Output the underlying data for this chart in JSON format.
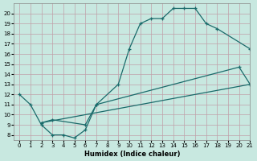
{
  "background_color": "#c8e8e0",
  "grid_color": "#c0a0a8",
  "line_color": "#1a6b6b",
  "xlabel": "Humidex (Indice chaleur)",
  "xlim": [
    -0.5,
    21
  ],
  "ylim": [
    7.5,
    21
  ],
  "xticks": [
    0,
    1,
    2,
    3,
    4,
    5,
    6,
    7,
    8,
    9,
    10,
    11,
    12,
    13,
    14,
    15,
    16,
    17,
    18,
    19,
    20,
    21
  ],
  "yticks": [
    8,
    9,
    10,
    11,
    12,
    13,
    14,
    15,
    16,
    17,
    18,
    19,
    20
  ],
  "curve1_x": [
    0,
    1,
    2,
    3,
    4,
    5,
    6,
    7,
    9,
    10,
    11,
    12,
    13,
    14,
    15,
    16,
    17,
    18,
    21
  ],
  "curve1_y": [
    12,
    11,
    9,
    8,
    8,
    7.7,
    8.5,
    11,
    13,
    16.5,
    19,
    19.5,
    19.5,
    20.5,
    20.5,
    20.5,
    19,
    18.5,
    16.5
  ],
  "curve2_x": [
    2,
    3,
    6,
    7,
    20,
    21
  ],
  "curve2_y": [
    9.2,
    9.5,
    9.0,
    11.0,
    14.7,
    13.0
  ],
  "curve3_x": [
    2,
    21
  ],
  "curve3_y": [
    9.2,
    13.0
  ]
}
